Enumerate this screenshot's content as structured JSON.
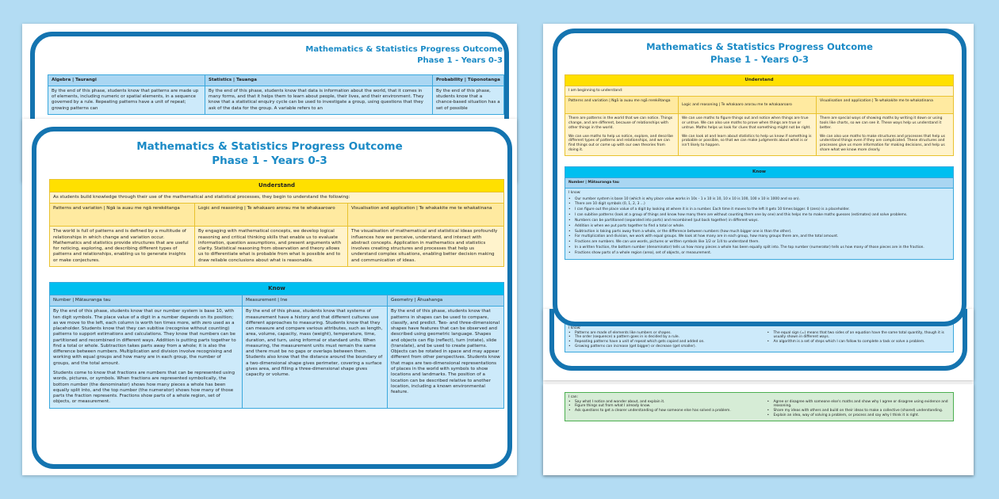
{
  "title_line1": "Mathematics & Statistics Progress Outcome",
  "title_line2": "Phase 1 - Years 0-3",
  "back_left": {
    "headers": [
      "Algebra | Taurangi",
      "Statistics | Tauanga",
      "Probability | Tūponotanga"
    ],
    "bodies": [
      "By the end of this phase, students know that patterns are made up of elements, including numeric or spatial elements, in a sequence governed by a rule. Repeating patterns have a unit of repeat; growing patterns can",
      "By the end of this phase, students know that data is information about the world, that it comes in many forms, and that it helps them to learn about people, their lives, and their environment. They know that a statistical enquiry cycle can be used to investigate a group, using questions that they ask of the data for the group. A variable refers to an",
      "By the end of this phase, students know that a chance-based situation has a set of possible"
    ]
  },
  "front_left": {
    "understand": "Understand",
    "intro": "As students build knowledge through their use of the mathematical and statistical processes, they begin to understand the following:",
    "u_headers": [
      "Patterns and variation | Ngā ia auau me ngā rerekētanga",
      "Logic and reasoning | Te whakaaro arorau me te whakaaroaro",
      "Visualisation and application | Te whakakite me te whakatinana"
    ],
    "u_bodies": [
      "The world is full of patterns and is defined by a multitude of relationships in which change and variation occur. Mathematics and statistics provide structures that are useful for noticing, exploring, and describing different types of patterns and relationships, enabling us to generate insights or make conjectures.",
      "By engaging with mathematical concepts, we develop logical reasoning and critical thinking skills that enable us to evaluate information, question assumptions, and present arguments with clarity. Statistical reasoning from observation and theory allows us to differentiate what is probable from what is possible and to draw reliable conclusions about what is reasonable.",
      "The visualisation of mathematical and statistical ideas profoundly influences how we perceive, understand, and interact with abstract concepts. Application in mathematics and statistics involves creating structures and processes that help us understand complex situations, enabling better decision making and communication of ideas."
    ],
    "know": "Know",
    "k_headers": [
      "Number | Mātauranga tau",
      "Measurement | Ine",
      "Geometry | Āhuahanga"
    ],
    "k_number": [
      "By the end of this phase, students know that our number system is base 10, with ten digit symbols. The place value of a digit in a number depends on its position; as we move to the left, each column is worth ten times more, with zero used as a placeholder. Students know that they can subitise (recognise without counting) patterns to support estimations and calculations. They know that numbers can be partitioned and recombined in different ways. Addition is putting parts together to find a total or whole. Subtraction takes parts away from a whole; it is also the difference between numbers. Multiplication and division involve recognising and working with equal groups and how many are in each group, the number of groups, and the total amount.",
      "Students come to know that fractions are numbers that can be represented using words, pictures, or symbols. When fractions are represented symbolically, the bottom number (the denominator) shows how many pieces a whole has been equally split into, and the top number (the numerator) shows how many of those parts the fraction represents. Fractions show parts of a whole region, set of objects, or measurement."
    ],
    "k_measurement": "By the end of this phase, students know that systems of measurement have a history and that different cultures use different approaches to measuring. Students know that they can measure and compare various attributes, such as length, area, volume, capacity, mass (weight), temperature, time, duration, and turn, using informal or standard units. When measuring, the measurement units must remain the same and there must be no gaps or overlaps between them. Students also know that the distance around the boundary of a two-dimensional shape gives perimeter, covering a surface gives area, and filling a three-dimensional shape gives capacity or volume.",
    "k_geometry": "By the end of this phase, students know that patterns in shapes can be used to compare, classify, and predict. Two- and three-dimensional shapes have features that can be observed and described using geometric language. Shapes and objects can flip (reflect), turn (rotate), slide (translate), and be used to create patterns. Objects can be rotated in space and may appear different from other perspectives. Students know that maps are two-dimensional representations of places in the world with symbols to show locations and landmarks. The position of a location can be described relative to another location, including a known environmental feature."
  },
  "front_right": {
    "understand": "Understand",
    "intro": "I am beginning to understand:",
    "u_headers": [
      "Patterns and variation | Ngā ia auau me ngā rerekētanga",
      "Logic and reasoning | Te whakaaro arorau me te whakaaroaro",
      "Visualisation and application | Te whakakite me te whakatinana"
    ],
    "u_bodies": [
      [
        "There are patterns in the world that we can notice. Things change, and are different, because of relationships with other things in the world.",
        "We can use maths to help us notice, explore, and describe different types of patterns and relationships, and we can find things out or come up with our own theories from doing it."
      ],
      [
        "We can use maths to figure things out and notice when things are true or untrue. We can also use maths to prove when things are true or untrue. Maths helps us look for clues that something might not be right.",
        "We can look at and learn about statistics to help us know if something is probable or possible, so that we can make judgments about what is or isn't likely to happen."
      ],
      [
        "There are special ways of showing maths by writing it down or using tools like charts, so we can see it. These ways help us understand it better.",
        "We can also use maths to make structures and processes that help us understand things even if they are complicated. These structures and processes give us more information for making decisions, and help us share what we know more clearly."
      ]
    ],
    "know": "Know",
    "k_header": "Number | Mātauranga tau",
    "k_intro": "I know:",
    "k_items": [
      "Our number system is base 10 (which is why place value works in 10s - 1 x 10 is 10, 10 x 10 is 100, 100 x 10 is 1000 and so on).",
      "There are 10 digit symbols (0, 1, 2, 3 ...)",
      "I can figure out the place value of a digit by looking at where it is in a number. Each time it moves to the left it gets 10 times bigger. 0 (zero) is a placeholder.",
      "I can subitise patterns (look at a group of things and know how many there are without counting them one by one) and this helps me to make maths guesses (estimates) and solve problems.",
      "Numbers can be partitioned (separated into parts) and recombined (put back together) in different ways.",
      "Addition is when we put parts together to find a total or whole.",
      "Subtraction is taking parts away from a whole, or the difference between numbers (how much bigger one is than the other).",
      "For multiplication and division, we work with equal groups. We look at how many are in each group, how many groups there are, and the total amount.",
      "Fractions are numbers. We can use words, pictures or written symbols like 1/2 or 1/4 to understand them.",
      "In a written fraction, the bottom number (denominator) tells us how many pieces a whole has been equally split into. The top number (numerator) tells us how many of those pieces are in the fraction.",
      "Fractions show parts of a whole region (area), set of objects, or measurement."
    ]
  },
  "middle_right": {
    "intro": "I know:",
    "left": [
      "Patterns are made of elements like numbers or shapes.",
      "The order (sequence) a pattern goes in is decided by a rule.",
      "Repeating patterns have a unit of repeat which gets copied and added on.",
      "Growing patterns can increase (get bigger) or decrease (get smaller)."
    ],
    "right": [
      "The equal sign (=) means that two sides of an equation have the same total quantity, though it is usually shown in different ways.",
      "An algorithm is a set of steps which I can follow to complete a task or solve a problem."
    ]
  },
  "bottom_right": {
    "intro": "I can:",
    "left": [
      "Say what I notice and wonder about, and explain it.",
      "Figure things out from what I already know.",
      "Ask questions to get a clearer understanding of how someone else has solved a problem."
    ],
    "right": [
      "Agree or disagree with someone else's maths and show why I agree or disagree using evidence and reasoning.",
      "Share my ideas with others and build on their ideas to make a collective (shared) understanding.",
      "Explain an idea, way of solving a problem, or process and say why I think it is right."
    ]
  },
  "colors": {
    "frame": "#1474b0",
    "title": "#1a8ac6",
    "understand": "#ffe000",
    "know": "#00bff0",
    "background": "#b3dcf3"
  }
}
